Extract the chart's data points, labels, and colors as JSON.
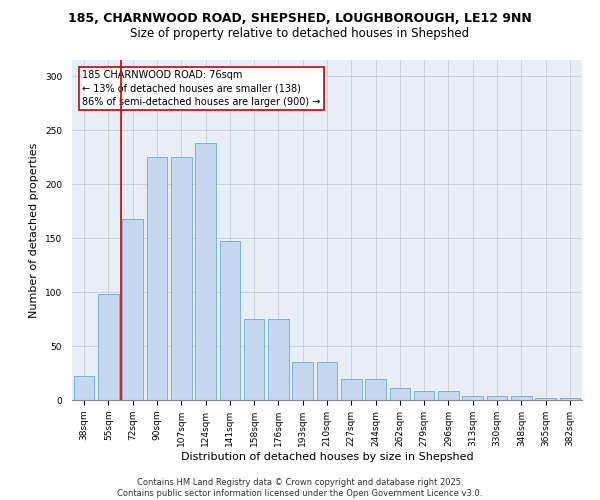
{
  "title_line1": "185, CHARNWOOD ROAD, SHEPSHED, LOUGHBOROUGH, LE12 9NN",
  "title_line2": "Size of property relative to detached houses in Shepshed",
  "xlabel": "Distribution of detached houses by size in Shepshed",
  "ylabel": "Number of detached properties",
  "categories": [
    "38sqm",
    "55sqm",
    "72sqm",
    "90sqm",
    "107sqm",
    "124sqm",
    "141sqm",
    "158sqm",
    "176sqm",
    "193sqm",
    "210sqm",
    "227sqm",
    "244sqm",
    "262sqm",
    "279sqm",
    "296sqm",
    "313sqm",
    "330sqm",
    "348sqm",
    "365sqm",
    "382sqm"
  ],
  "values": [
    22,
    98,
    168,
    225,
    225,
    238,
    147,
    75,
    75,
    35,
    35,
    19,
    19,
    11,
    8,
    8,
    4,
    4,
    4,
    2,
    2
  ],
  "bar_color": "#c5d8f0",
  "bar_edge_color": "#6aaad4",
  "grid_color": "#cccccc",
  "bg_color": "#e8eef8",
  "annotation_text": "185 CHARNWOOD ROAD: 76sqm\n← 13% of detached houses are smaller (138)\n86% of semi-detached houses are larger (900) →",
  "annotation_box_color": "#ffffff",
  "annotation_box_edge": "#cc0000",
  "vline_color": "#cc0000",
  "yticks": [
    0,
    50,
    100,
    150,
    200,
    250,
    300
  ],
  "ylim": [
    0,
    315
  ],
  "footer": "Contains HM Land Registry data © Crown copyright and database right 2025.\nContains public sector information licensed under the Open Government Licence v3.0.",
  "title_fontsize": 9,
  "subtitle_fontsize": 8.5,
  "tick_fontsize": 6.5,
  "xlabel_fontsize": 8,
  "ylabel_fontsize": 8,
  "annot_fontsize": 7
}
